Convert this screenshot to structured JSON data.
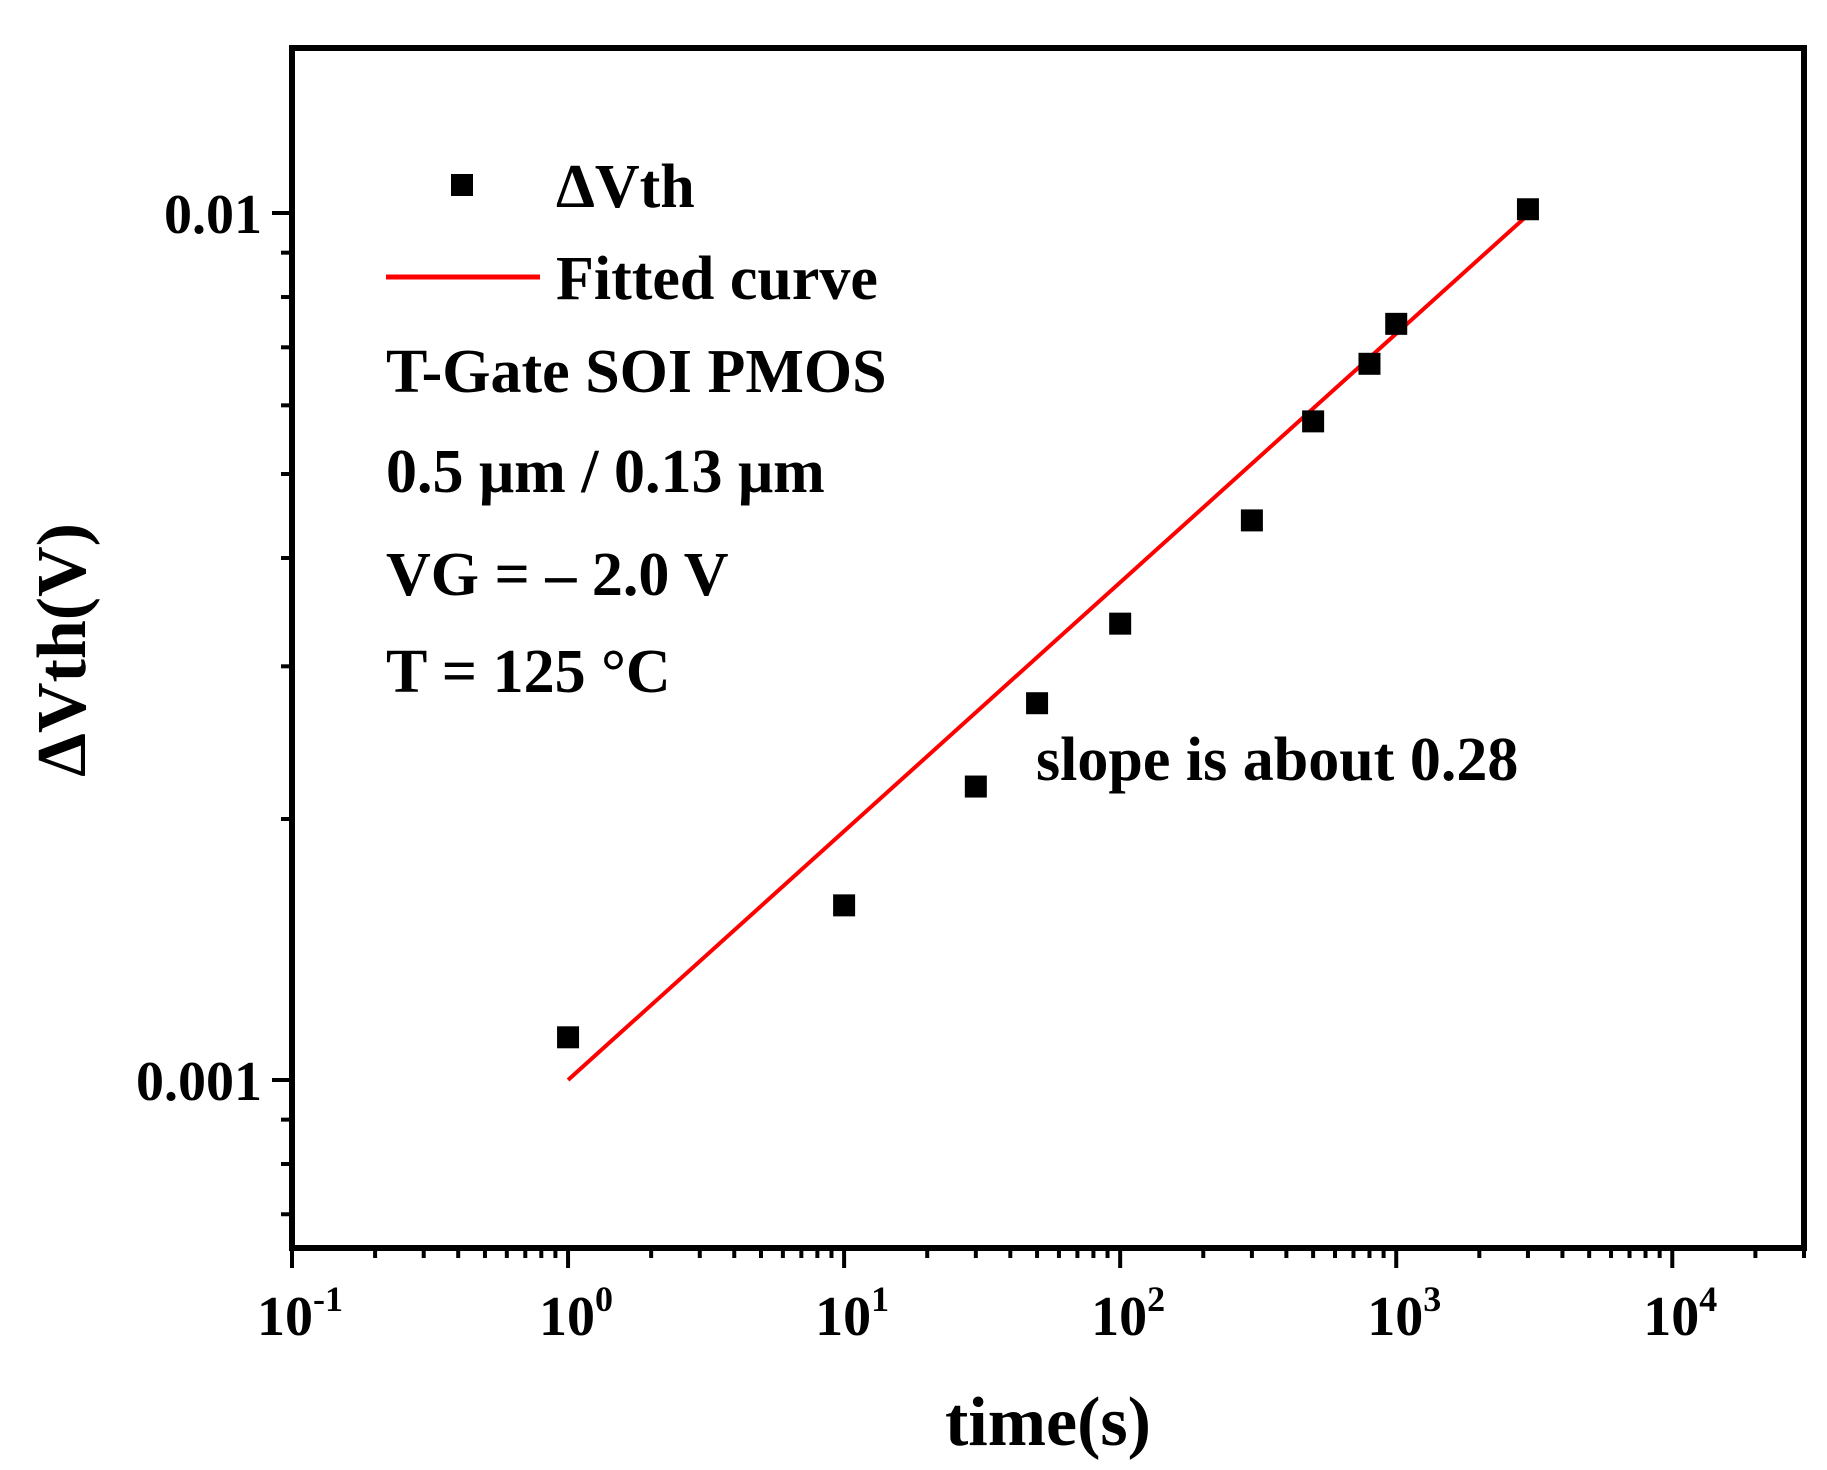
{
  "chart_data": {
    "type": "scatter",
    "xscale": "log",
    "yscale": "log",
    "xlabel": "time(s)",
    "ylabel": "ΔVth(V)",
    "xlim": [
      0.1,
      30000
    ],
    "ylim": [
      0.00064,
      0.0155
    ],
    "x_ticks": [
      {
        "value": 0.1,
        "base": "10",
        "exp": "-1"
      },
      {
        "value": 1,
        "base": "10",
        "exp": "0"
      },
      {
        "value": 10,
        "base": "10",
        "exp": "1"
      },
      {
        "value": 100,
        "base": "10",
        "exp": "2"
      },
      {
        "value": 1000,
        "base": "10",
        "exp": "3"
      },
      {
        "value": 10000,
        "base": "10",
        "exp": "4"
      }
    ],
    "y_ticks": [
      {
        "value": 0.001,
        "label": "0.001"
      },
      {
        "value": 0.01,
        "label": "0.01"
      }
    ],
    "series": [
      {
        "name": "ΔVth",
        "kind": "scatter",
        "marker": "square",
        "color": "#000000",
        "x": [
          1,
          10,
          30,
          50,
          100,
          300,
          500,
          800,
          1000,
          3000
        ],
        "y": [
          0.00112,
          0.00159,
          0.00218,
          0.00272,
          0.00336,
          0.00442,
          0.00575,
          0.0067,
          0.00745,
          0.0101
        ]
      },
      {
        "name": "Fitted curve",
        "kind": "line",
        "color": "#ff0000",
        "x": [
          1,
          3000
        ],
        "y": [
          0.001,
          0.00995
        ]
      }
    ],
    "legend": {
      "position": "top-left",
      "entries": [
        "ΔVth",
        "Fitted curve"
      ]
    },
    "notes": [
      "T-Gate SOI PMOS",
      "0.5 μm / 0.13 μm",
      "VG = – 2.0 V",
      "T = 125 °C"
    ],
    "annotation": "slope is about 0.28"
  }
}
